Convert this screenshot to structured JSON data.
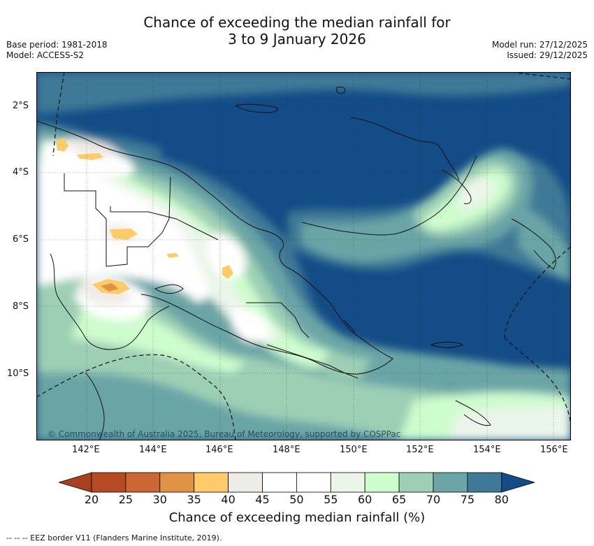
{
  "title_line1": "Chance of exceeding the median rainfall for",
  "title_line2": "3 to 9 January 2026",
  "meta_left": [
    "Base period: 1981-2018",
    "Model: ACCESS-S2"
  ],
  "meta_right": [
    "Model run: 27/12/2025",
    "Issued: 29/12/2025"
  ],
  "y_ticks": [
    "2°S",
    "4°S",
    "6°S",
    "8°S",
    "10°S"
  ],
  "x_ticks": [
    "142°E",
    "144°E",
    "146°E",
    "148°E",
    "150°E",
    "152°E",
    "154°E",
    "156°E"
  ],
  "copyright": "© Commonwealth of Australia 2025, Bureau of Meteorology, supported by COSPPac",
  "colorbar": {
    "ticks": [
      "20",
      "25",
      "30",
      "35",
      "40",
      "45",
      "50",
      "55",
      "60",
      "65",
      "70",
      "75",
      "80"
    ],
    "colors": [
      "#b54a24",
      "#cc6633",
      "#e19345",
      "#fdcb6a",
      "#efebe6",
      "#ffffff",
      "#ffffff",
      "#ebf5e9",
      "#cdfccd",
      "#9dcfb5",
      "#6ba5a6",
      "#3f7997",
      "#134c86"
    ],
    "low_color": "#a8401f",
    "high_color": "#134c86",
    "title": "Chance of exceeding median rainfall (%)"
  },
  "footnote": "--  --  -- EEZ border V11 (Flanders Marine Institute, 2019)."
}
